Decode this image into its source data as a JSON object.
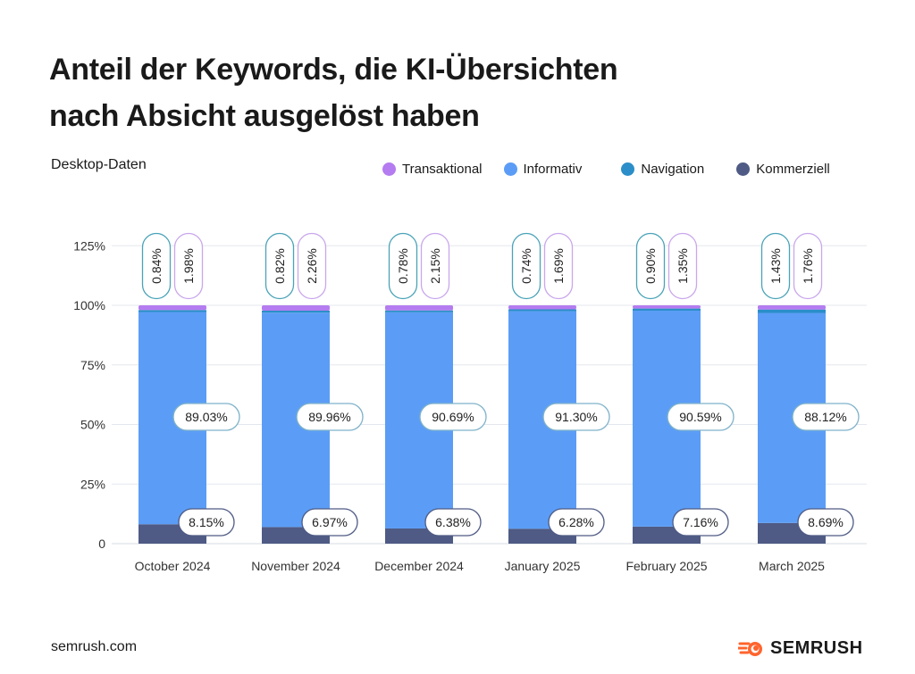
{
  "title_line1": "Anteil der Keywords, die KI-Übersichten",
  "title_line2": "nach Absicht ausgelöst haben",
  "subtitle": "Desktop-Daten",
  "footer": "semrush.com",
  "logo_text": "SEMRUSH",
  "colors": {
    "Transaktional": "#b47cf0",
    "Informativ": "#5b9df6",
    "Navigation": "#2b8ec8",
    "Kommerziell": "#4f5b85",
    "accent": "#ff642d"
  },
  "chart_data": {
    "type": "bar",
    "stacked": true,
    "categories": [
      "October 2024",
      "November 2024",
      "December 2024",
      "January 2025",
      "February 2025",
      "March 2025"
    ],
    "series": [
      {
        "name": "Kommerziell",
        "values": [
          8.15,
          6.97,
          6.38,
          6.28,
          7.16,
          8.69
        ],
        "labels": [
          "8.15%",
          "6.97%",
          "6.38%",
          "6.28%",
          "7.16%",
          "8.69%"
        ]
      },
      {
        "name": "Informativ",
        "values": [
          89.03,
          89.96,
          90.69,
          91.3,
          90.59,
          88.12
        ],
        "labels": [
          "89.03%",
          "89.96%",
          "90.69%",
          "91.30%",
          "90.59%",
          "88.12%"
        ]
      },
      {
        "name": "Navigation",
        "values": [
          0.84,
          0.82,
          0.78,
          0.74,
          0.9,
          1.43
        ],
        "labels": [
          "0.84%",
          "0.82%",
          "0.78%",
          "0.74%",
          "0.90%",
          "1.43%"
        ]
      },
      {
        "name": "Transaktional",
        "values": [
          1.98,
          2.26,
          2.15,
          1.69,
          1.35,
          1.76
        ],
        "labels": [
          "1.98%",
          "2.26%",
          "2.15%",
          "1.69%",
          "1.35%",
          "1.76%"
        ]
      }
    ],
    "legend": [
      "Transaktional",
      "Informativ",
      "Navigation",
      "Kommerziell"
    ],
    "legend_position": "top-right",
    "ylim": [
      0,
      125
    ],
    "yticks": [
      "0",
      "25%",
      "50%",
      "75%",
      "100%",
      "125%"
    ],
    "grid": true
  }
}
